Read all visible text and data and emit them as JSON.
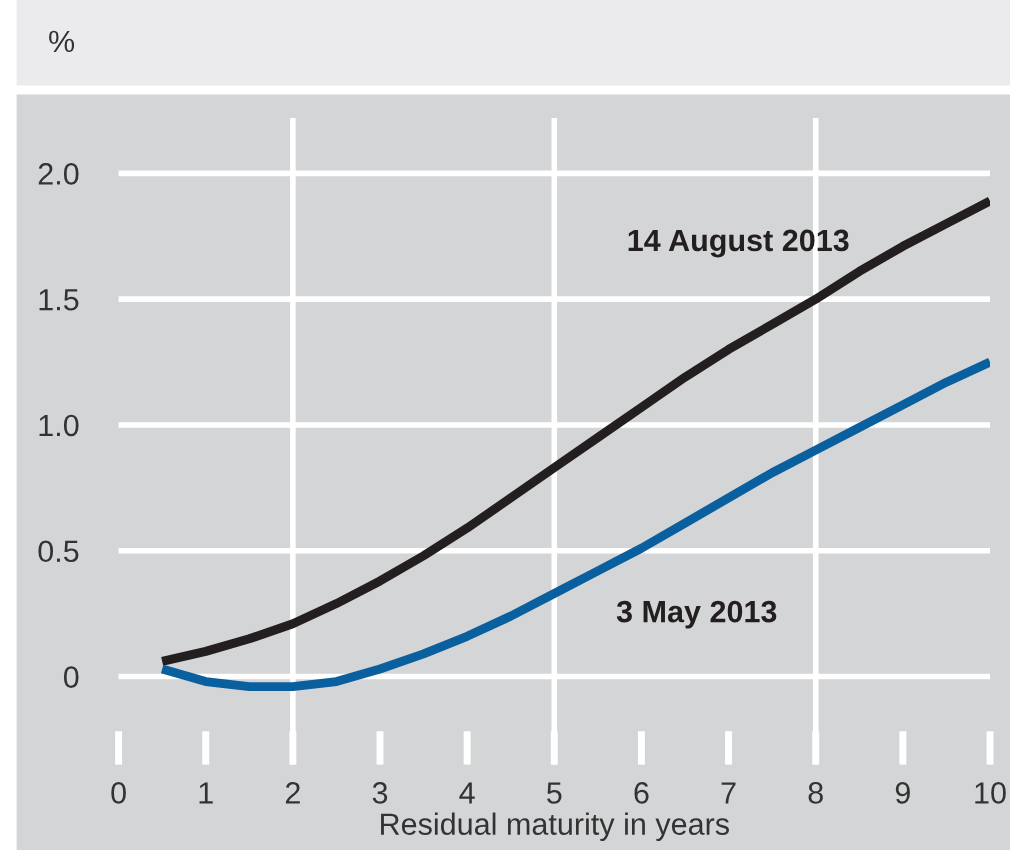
{
  "chart_data": {
    "type": "line",
    "ylabel": "%",
    "xlabel": "Residual maturity in years",
    "x": [
      0.5,
      1,
      1.5,
      2,
      2.5,
      3,
      3.5,
      4,
      4.5,
      5,
      5.5,
      6,
      6.5,
      7,
      7.5,
      8,
      8.5,
      9,
      9.5,
      10
    ],
    "series": [
      {
        "name": "14 August 2013",
        "color": "#231f20",
        "values": [
          0.06,
          0.1,
          0.15,
          0.21,
          0.29,
          0.38,
          0.48,
          0.59,
          0.71,
          0.83,
          0.95,
          1.07,
          1.19,
          1.3,
          1.4,
          1.5,
          1.61,
          1.71,
          1.8,
          1.89
        ]
      },
      {
        "name": "3 May 2013",
        "color": "#0a5f9e",
        "values": [
          0.03,
          -0.02,
          -0.04,
          -0.04,
          -0.02,
          0.03,
          0.09,
          0.16,
          0.24,
          0.33,
          0.42,
          0.51,
          0.61,
          0.71,
          0.81,
          0.9,
          0.99,
          1.08,
          1.17,
          1.25
        ]
      }
    ],
    "xlim": [
      0,
      10
    ],
    "xticks": [
      0,
      1,
      2,
      3,
      4,
      5,
      6,
      7,
      8,
      9,
      10
    ],
    "ylim": [
      -0.35,
      2.22
    ],
    "yticks": [
      {
        "value": 0,
        "label": "0"
      },
      0.5,
      {
        "value": 1,
        "label": "1.0"
      },
      1.5,
      {
        "value": 2,
        "label": "2.0"
      }
    ],
    "grid": "y",
    "marker": "none",
    "line_style": "solid",
    "ref_lines": [
      {
        "axis": "x",
        "value": 2,
        "color": "#ffffff"
      },
      {
        "axis": "x",
        "value": 5,
        "color": "#ffffff"
      },
      {
        "axis": "x",
        "value": 8,
        "color": "#ffffff"
      }
    ]
  }
}
